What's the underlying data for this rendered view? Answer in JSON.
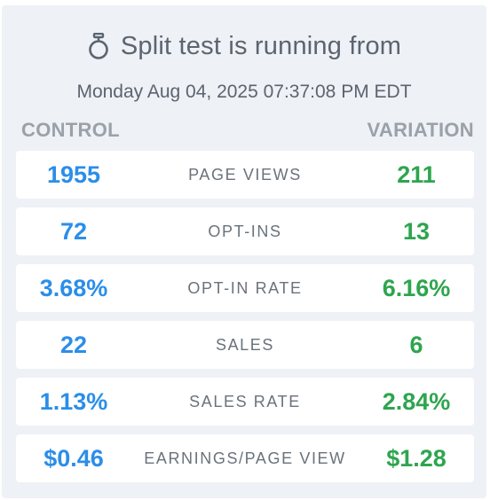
{
  "header": {
    "title": "Split test is running from",
    "started_at": "Monday Aug 04, 2025 07:37:08 PM EDT",
    "icon": "stopwatch-icon"
  },
  "columns": {
    "control": "CONTROL",
    "variation": "VARIATION"
  },
  "colors": {
    "control": "#2b8ee8",
    "variation": "#2ea54e"
  },
  "metrics": [
    {
      "label": "PAGE VIEWS",
      "control": "1955",
      "variation": "211"
    },
    {
      "label": "OPT-INS",
      "control": "72",
      "variation": "13"
    },
    {
      "label": "OPT-IN RATE",
      "control": "3.68%",
      "variation": "6.16%"
    },
    {
      "label": "SALES",
      "control": "22",
      "variation": "6"
    },
    {
      "label": "SALES RATE",
      "control": "1.13%",
      "variation": "2.84%"
    },
    {
      "label": "EARNINGS/PAGE VIEW",
      "control": "$0.46",
      "variation": "$1.28"
    }
  ]
}
